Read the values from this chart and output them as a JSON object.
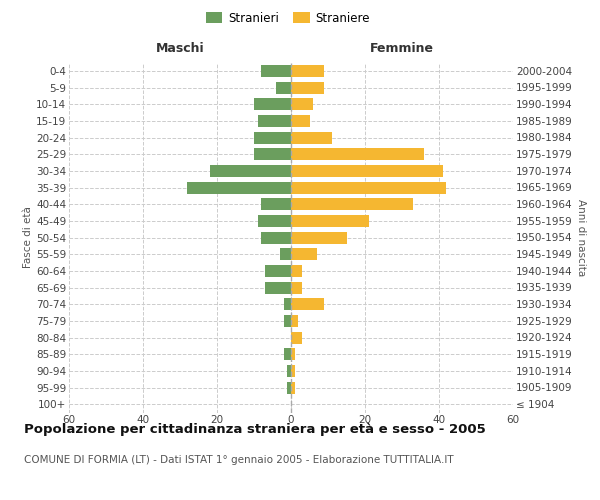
{
  "age_groups": [
    "100+",
    "95-99",
    "90-94",
    "85-89",
    "80-84",
    "75-79",
    "70-74",
    "65-69",
    "60-64",
    "55-59",
    "50-54",
    "45-49",
    "40-44",
    "35-39",
    "30-34",
    "25-29",
    "20-24",
    "15-19",
    "10-14",
    "5-9",
    "0-4"
  ],
  "birth_years": [
    "≤ 1904",
    "1905-1909",
    "1910-1914",
    "1915-1919",
    "1920-1924",
    "1925-1929",
    "1930-1934",
    "1935-1939",
    "1940-1944",
    "1945-1949",
    "1950-1954",
    "1955-1959",
    "1960-1964",
    "1965-1969",
    "1970-1974",
    "1975-1979",
    "1980-1984",
    "1985-1989",
    "1990-1994",
    "1995-1999",
    "2000-2004"
  ],
  "maschi": [
    0,
    1,
    1,
    2,
    0,
    2,
    2,
    7,
    7,
    3,
    8,
    9,
    8,
    28,
    22,
    10,
    10,
    9,
    10,
    4,
    8
  ],
  "femmine": [
    0,
    1,
    1,
    1,
    3,
    2,
    9,
    3,
    3,
    7,
    15,
    21,
    33,
    42,
    41,
    36,
    11,
    5,
    6,
    9,
    9
  ],
  "color_maschi": "#6b9e5e",
  "color_femmine": "#f5b731",
  "background_color": "#ffffff",
  "grid_color": "#cccccc",
  "title": "Popolazione per cittadinanza straniera per età e sesso - 2005",
  "subtitle": "COMUNE DI FORMIA (LT) - Dati ISTAT 1° gennaio 2005 - Elaborazione TUTTITALIA.IT",
  "ylabel_left": "Fasce di età",
  "ylabel_right": "Anni di nascita",
  "header_left": "Maschi",
  "header_right": "Femmine",
  "legend_stranieri": "Stranieri",
  "legend_straniere": "Straniere",
  "xlim": 60,
  "title_fontsize": 9.5,
  "subtitle_fontsize": 7.5,
  "axis_fontsize": 7.5,
  "header_fontsize": 9
}
